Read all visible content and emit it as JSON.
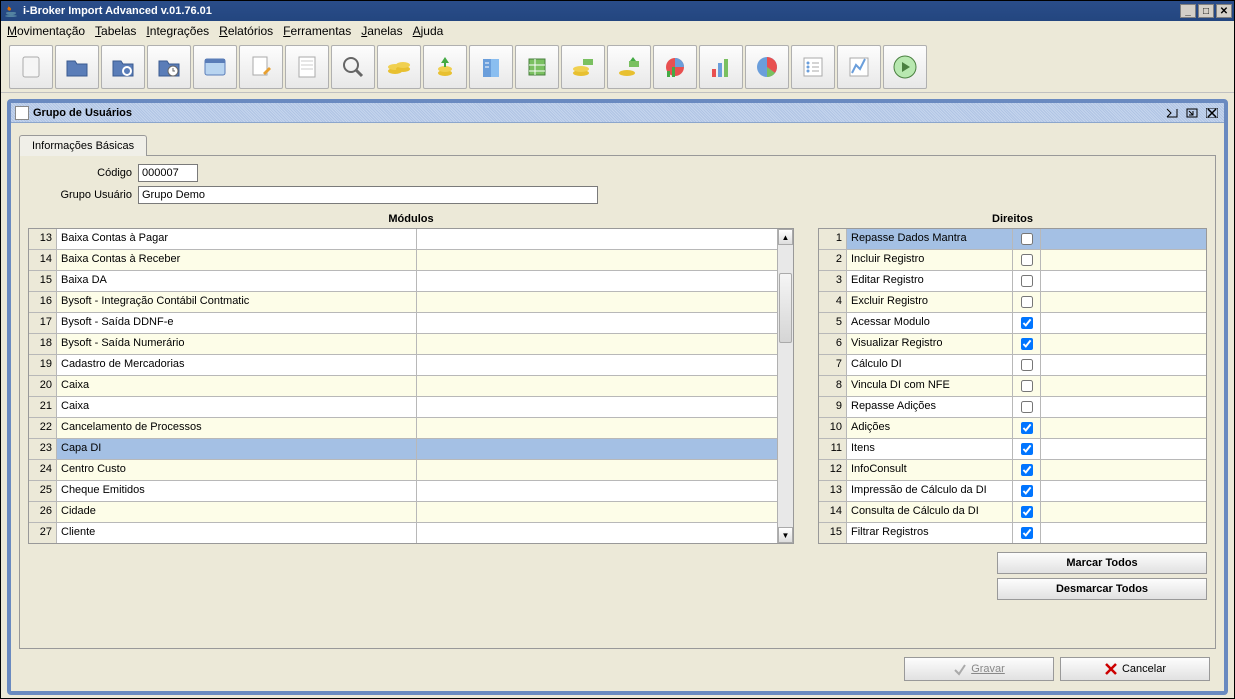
{
  "window": {
    "title": "i-Broker Import Advanced v.01.76.01"
  },
  "menus": [
    {
      "label": "Movimentação",
      "u": 0
    },
    {
      "label": "Tabelas",
      "u": 0
    },
    {
      "label": "Integrações",
      "u": 0
    },
    {
      "label": "Relatórios",
      "u": 0
    },
    {
      "label": "Ferramentas",
      "u": 0
    },
    {
      "label": "Janelas",
      "u": 0
    },
    {
      "label": "Ajuda",
      "u": 0
    }
  ],
  "toolbar_icons": [
    "doc",
    "folder",
    "folder-search",
    "folder-clock",
    "window",
    "edit",
    "page",
    "magnifier",
    "coins",
    "coins-up",
    "book",
    "sheet",
    "money",
    "money-arrow",
    "chart-pie",
    "chart-bar",
    "pie",
    "list",
    "graph",
    "play"
  ],
  "panel": {
    "title": "Grupo de Usuários",
    "tab": "Informações Básicas",
    "fields": {
      "codigo_label": "Código",
      "codigo_value": "000007",
      "grupo_label": "Grupo Usuário",
      "grupo_value": "Grupo Demo"
    },
    "modulos_header": "Módulos",
    "direitos_header": "Direitos",
    "modulos_start": 13,
    "modulos_selected": 23,
    "modulos": [
      "Baixa Contas à Pagar",
      "Baixa Contas à Receber",
      "Baixa DA",
      "Bysoft - Integração Contábil Contmatic",
      "Bysoft - Saída DDNF-e",
      "Bysoft - Saída Numerário",
      "Cadastro de Mercadorias",
      "Caixa",
      "Caixa",
      "Cancelamento de Processos",
      "Capa DI",
      "Centro Custo",
      "Cheque Emitidos",
      "Cidade",
      "Cliente"
    ],
    "direitos": [
      {
        "label": "Repasse Dados Mantra",
        "checked": false,
        "sel": true
      },
      {
        "label": "Incluir Registro",
        "checked": false
      },
      {
        "label": "Editar Registro",
        "checked": false
      },
      {
        "label": "Excluir Registro",
        "checked": false
      },
      {
        "label": "Acessar Modulo",
        "checked": true
      },
      {
        "label": "Visualizar Registro",
        "checked": true
      },
      {
        "label": "Cálculo DI",
        "checked": false
      },
      {
        "label": "Vincula DI com NFE",
        "checked": false
      },
      {
        "label": "Repasse Adições",
        "checked": false
      },
      {
        "label": "Adições",
        "checked": true
      },
      {
        "label": "Itens",
        "checked": true
      },
      {
        "label": "InfoConsult",
        "checked": true
      },
      {
        "label": "Impressão de Cálculo da DI",
        "checked": true
      },
      {
        "label": "Consulta de Cálculo da DI",
        "checked": true
      },
      {
        "label": "Filtrar Registros",
        "checked": true
      }
    ],
    "marcar_todos": "Marcar Todos",
    "desmarcar_todos": "Desmarcar Todos",
    "gravar": "Gravar",
    "cancelar": "Cancelar"
  },
  "colors": {
    "titlebar_bg": "#23467f",
    "frame_border": "#6a8ac0",
    "alt_row": "#fdfde8",
    "sel_row": "#a4c0e4"
  }
}
